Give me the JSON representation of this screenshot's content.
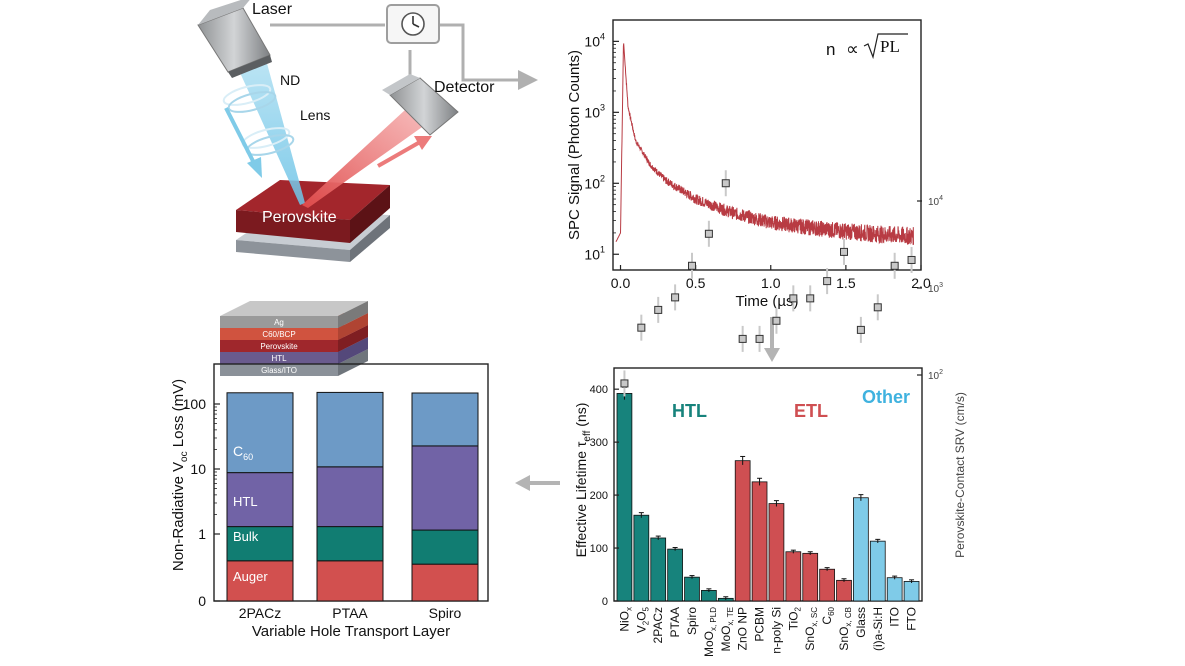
{
  "setup": {
    "laser": "Laser",
    "nd": "ND",
    "lens": "Lens",
    "detector": "Detector",
    "sample": "Perovskite"
  },
  "decay": {
    "formula": "n ∝ √PL",
    "formula_lhs": "n",
    "formula_prop": "∝",
    "formula_rad": "PL",
    "ylabel": "SPC Signal (Photon Counts)",
    "xlabel": "Time (µs)",
    "xticks": [
      "0.0",
      "0.5",
      "1.0",
      "1.5",
      "2.0"
    ],
    "yticks_base": [
      "10",
      "10",
      "10",
      "10"
    ],
    "yticks_exp": [
      "1",
      "2",
      "3",
      "4"
    ]
  },
  "voc": {
    "stack_layers": [
      "Ag",
      "C60/BCP",
      "Perovskite",
      "HTL",
      "Glass/ITO"
    ],
    "ylabel": "Non-Radiative Voc Loss (mV)",
    "xlabel": "Variable Hole Transport Layer",
    "yticks": [
      "0",
      "1",
      "10",
      "100"
    ],
    "segment_labels": [
      "Auger",
      "Bulk",
      "HTL",
      "C60"
    ]
  },
  "lifetime": {
    "ylabel": "Effective Lifetime τeff (ns)",
    "ylabel2": "Perovskite-Contact SRV (cm/s)",
    "group_labels": [
      "HTL",
      "ETL",
      "Other"
    ],
    "yticks": [
      "0",
      "100",
      "200",
      "300",
      "400"
    ],
    "y2ticks_base": [
      "10",
      "10",
      "10"
    ],
    "y2ticks_exp": [
      "4",
      "3",
      "2"
    ]
  },
  "colors": {
    "teal": "#17837c",
    "red": "#cf4f52",
    "lightblue": "#7fcbe8",
    "auger": "#d2504f",
    "bulk": "#117d72",
    "htl": "#7163a6",
    "c60": "#6d9ac6",
    "trace": "#b83b43",
    "arrow": "#b4b4b4"
  },
  "chart_data": [
    {
      "type": "line",
      "title": "",
      "xlabel": "Time (µs)",
      "ylabel": "SPC Signal (Photon Counts)",
      "yscale": "log",
      "xlim": [
        -0.05,
        2.0
      ],
      "ylim": [
        6,
        20000
      ],
      "series": [
        {
          "x": [
            -0.03,
            0.0,
            0.02,
            0.05,
            0.1,
            0.2,
            0.3,
            0.5,
            0.75,
            1.0,
            1.25,
            1.5,
            1.75,
            1.95
          ],
          "values": [
            15,
            20,
            10000,
            1200,
            400,
            180,
            110,
            60,
            38,
            28,
            24,
            21,
            19,
            18
          ]
        }
      ]
    },
    {
      "type": "bar",
      "title": "",
      "xlabel": "Variable Hole Transport Layer",
      "ylabel": "Non-Radiative Voc Loss (mV)",
      "categories": [
        "2PACz",
        "PTAA",
        "Spiro"
      ],
      "series": [
        {
          "name": "Auger",
          "values": [
            0.6,
            0.6,
            0.55
          ]
        },
        {
          "name": "Bulk",
          "values": [
            0.7,
            0.7,
            0.6
          ]
        },
        {
          "name": "HTL",
          "values": [
            7.5,
            9.5,
            21.5
          ]
        },
        {
          "name": "C60",
          "values": [
            140,
            140,
            125
          ]
        }
      ]
    },
    {
      "type": "bar",
      "title": "",
      "ylabel": "Effective Lifetime τeff (ns)",
      "ylabel2": "Perovskite-Contact SRV (cm/s)",
      "ylim": [
        0,
        440
      ],
      "categories": [
        {
          "base": "NiO",
          "sub": "x"
        },
        {
          "base": "V",
          "sub": "2",
          "mid": "O",
          "sub2": "5"
        },
        {
          "base": "2PACz"
        },
        {
          "base": "PTAA"
        },
        {
          "base": "Spiro"
        },
        {
          "base": "MoO",
          "sub": "x, PLD"
        },
        {
          "base": "MoO",
          "sub": "x, TE"
        },
        {
          "base": "ZnO NP"
        },
        {
          "base": "PCBM"
        },
        {
          "base": "n-poly Si"
        },
        {
          "base": "TiO",
          "sub": "2"
        },
        {
          "base": "SnO",
          "sub": "x, SC"
        },
        {
          "base": "C",
          "sub": "60"
        },
        {
          "base": "SnO",
          "sub": "x, CB"
        },
        {
          "base": "Glass"
        },
        {
          "base": "(i)a-Si:H"
        },
        {
          "base": "ITO"
        },
        {
          "base": "FTO"
        }
      ],
      "groups": [
        "HTL",
        "HTL",
        "HTL",
        "HTL",
        "HTL",
        "HTL",
        "HTL",
        "ETL",
        "ETL",
        "ETL",
        "ETL",
        "ETL",
        "ETL",
        "ETL",
        "Other",
        "Other",
        "Other",
        "Other"
      ],
      "values": [
        392,
        162,
        119,
        98,
        45,
        20,
        5,
        265,
        225,
        184,
        93,
        90,
        60,
        39,
        195,
        113,
        44,
        37
      ],
      "srv": [
        80,
        350,
        560,
        780,
        1800,
        4200,
        16000,
        260,
        260,
        420,
        760,
        760,
        1200,
        2600,
        330,
        600,
        1800,
        2100
      ]
    }
  ]
}
